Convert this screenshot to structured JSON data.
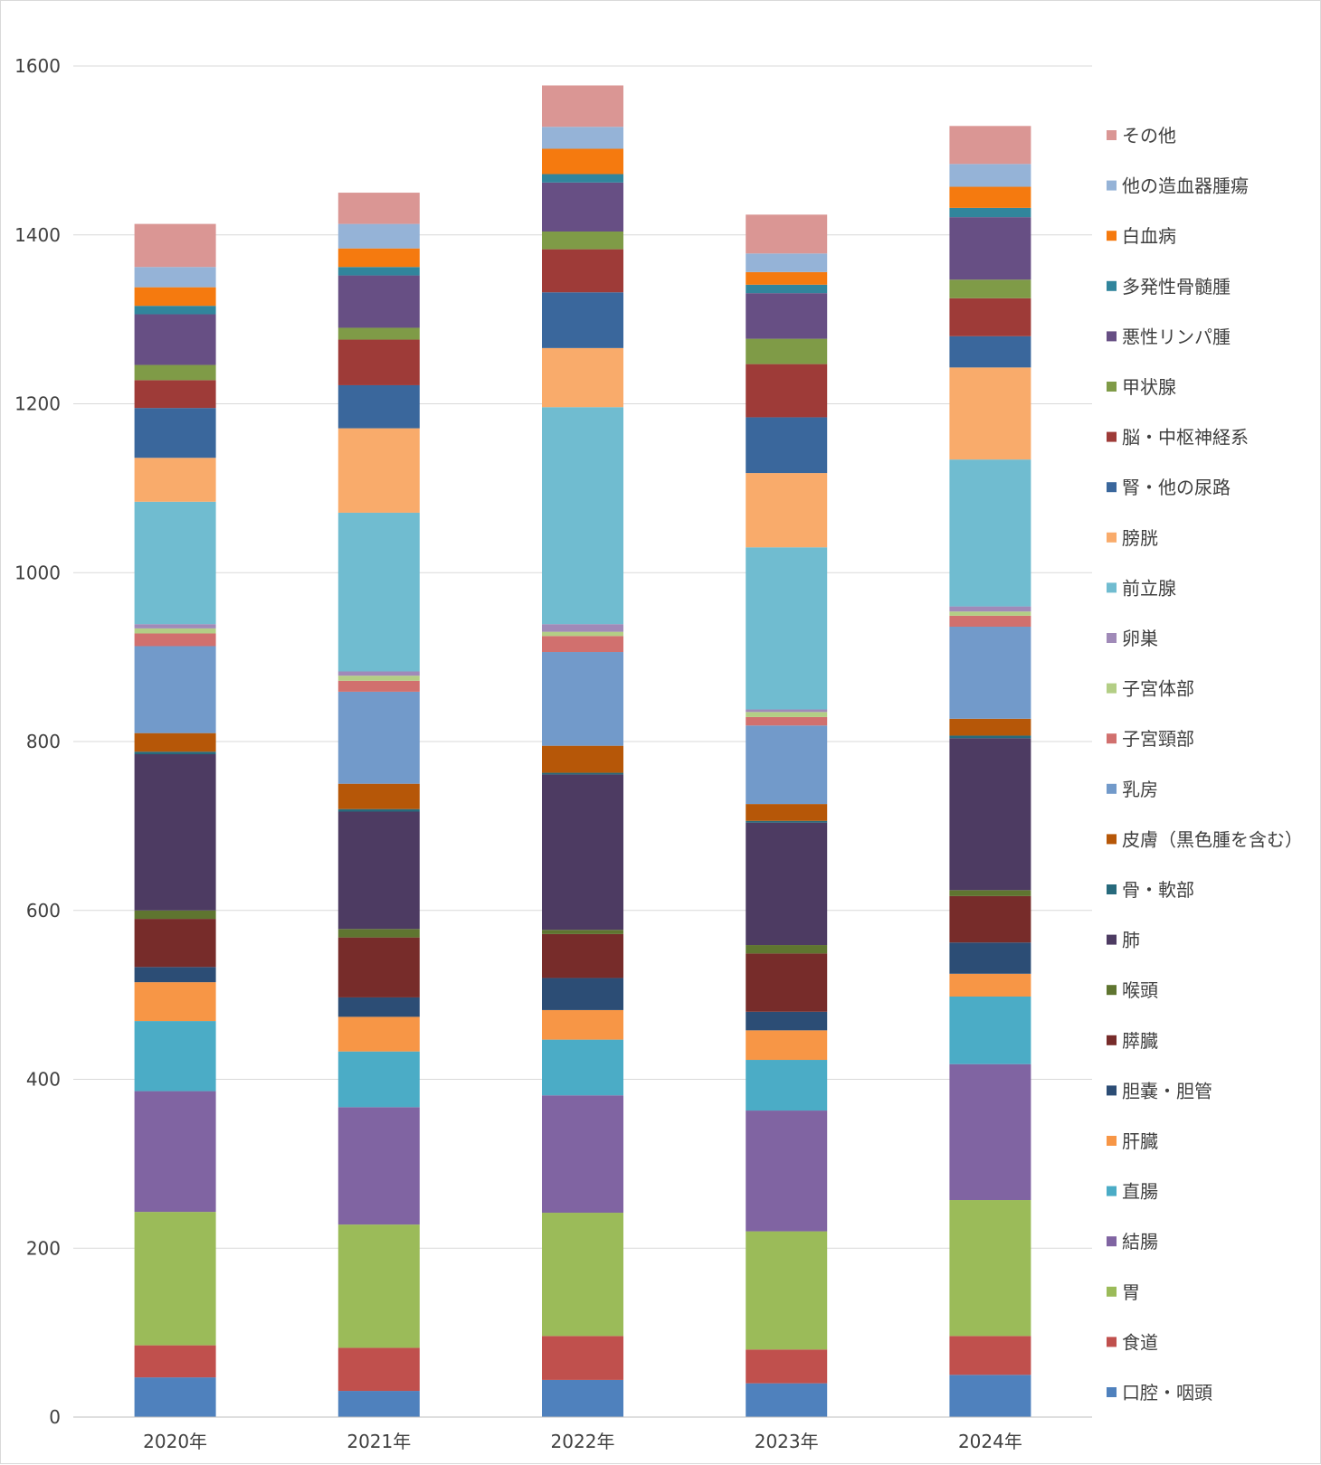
{
  "chart_data": {
    "type": "bar",
    "stacked": true,
    "categories": [
      "2020年",
      "2021年",
      "2022年",
      "2023年",
      "2024年"
    ],
    "ylim": [
      0,
      1600
    ],
    "yticks": [
      0,
      200,
      400,
      600,
      800,
      1000,
      1200,
      1400,
      1600
    ],
    "grid": true,
    "legend_position": "right",
    "series": [
      {
        "name": "口腔・咽頭",
        "color": "#4F81BD",
        "values": [
          47,
          31,
          44,
          40,
          50
        ]
      },
      {
        "name": "食道",
        "color": "#C0504D",
        "values": [
          38,
          51,
          52,
          40,
          46
        ]
      },
      {
        "name": "胃",
        "color": "#9BBB59",
        "values": [
          158,
          146,
          146,
          140,
          161
        ]
      },
      {
        "name": "結腸",
        "color": "#8064A2",
        "values": [
          143,
          139,
          139,
          143,
          161
        ]
      },
      {
        "name": "直腸",
        "color": "#4BACC6",
        "values": [
          83,
          66,
          66,
          60,
          80
        ]
      },
      {
        "name": "肝臓",
        "color": "#F79646",
        "values": [
          46,
          41,
          35,
          35,
          27
        ]
      },
      {
        "name": "胆嚢・胆管",
        "color": "#2C4D75",
        "values": [
          18,
          23,
          38,
          22,
          37
        ]
      },
      {
        "name": "膵臓",
        "color": "#772C2A",
        "values": [
          57,
          71,
          52,
          69,
          55
        ]
      },
      {
        "name": "喉頭",
        "color": "#5F7530",
        "values": [
          10,
          10,
          5,
          10,
          7
        ]
      },
      {
        "name": "肺",
        "color": "#4D3B62",
        "values": [
          185,
          139,
          184,
          145,
          180
        ]
      },
      {
        "name": "骨・軟部",
        "color": "#276A7C",
        "values": [
          3,
          3,
          2,
          2,
          3
        ]
      },
      {
        "name": "皮膚（黒色腫を含む）",
        "color": "#B65708",
        "values": [
          22,
          30,
          32,
          20,
          20
        ]
      },
      {
        "name": "乳房",
        "color": "#729ACA",
        "values": [
          103,
          109,
          111,
          93,
          109
        ]
      },
      {
        "name": "子宮頸部",
        "color": "#D1706E",
        "values": [
          15,
          13,
          19,
          10,
          13
        ]
      },
      {
        "name": "子宮体部",
        "color": "#B3CE85",
        "values": [
          6,
          6,
          5,
          6,
          5
        ]
      },
      {
        "name": "卵巣",
        "color": "#A08AB8",
        "values": [
          5,
          5,
          9,
          3,
          6
        ]
      },
      {
        "name": "前立腺",
        "color": "#70BCD0",
        "values": [
          145,
          188,
          257,
          192,
          174
        ]
      },
      {
        "name": "膀胱",
        "color": "#F9AB6B",
        "values": [
          52,
          100,
          70,
          88,
          109
        ]
      },
      {
        "name": "腎・他の尿路",
        "color": "#3A679C",
        "values": [
          59,
          51,
          66,
          66,
          37
        ]
      },
      {
        "name": "脳・中枢神経系",
        "color": "#9E3B38",
        "values": [
          33,
          54,
          51,
          63,
          45
        ]
      },
      {
        "name": "甲状腺",
        "color": "#7F9B47",
        "values": [
          18,
          14,
          21,
          30,
          22
        ]
      },
      {
        "name": "悪性リンパ腫",
        "color": "#674F84",
        "values": [
          60,
          62,
          58,
          54,
          74
        ]
      },
      {
        "name": "多発性骨髄腫",
        "color": "#31859C",
        "values": [
          10,
          10,
          10,
          10,
          11
        ]
      },
      {
        "name": "白血病",
        "color": "#F57A0F",
        "values": [
          22,
          22,
          30,
          15,
          25
        ]
      },
      {
        "name": "他の造血器腫瘍",
        "color": "#95B3D7",
        "values": [
          24,
          29,
          26,
          22,
          27
        ]
      },
      {
        "name": "その他",
        "color": "#DA9694",
        "values": [
          51,
          37,
          49,
          46,
          45
        ]
      }
    ]
  }
}
